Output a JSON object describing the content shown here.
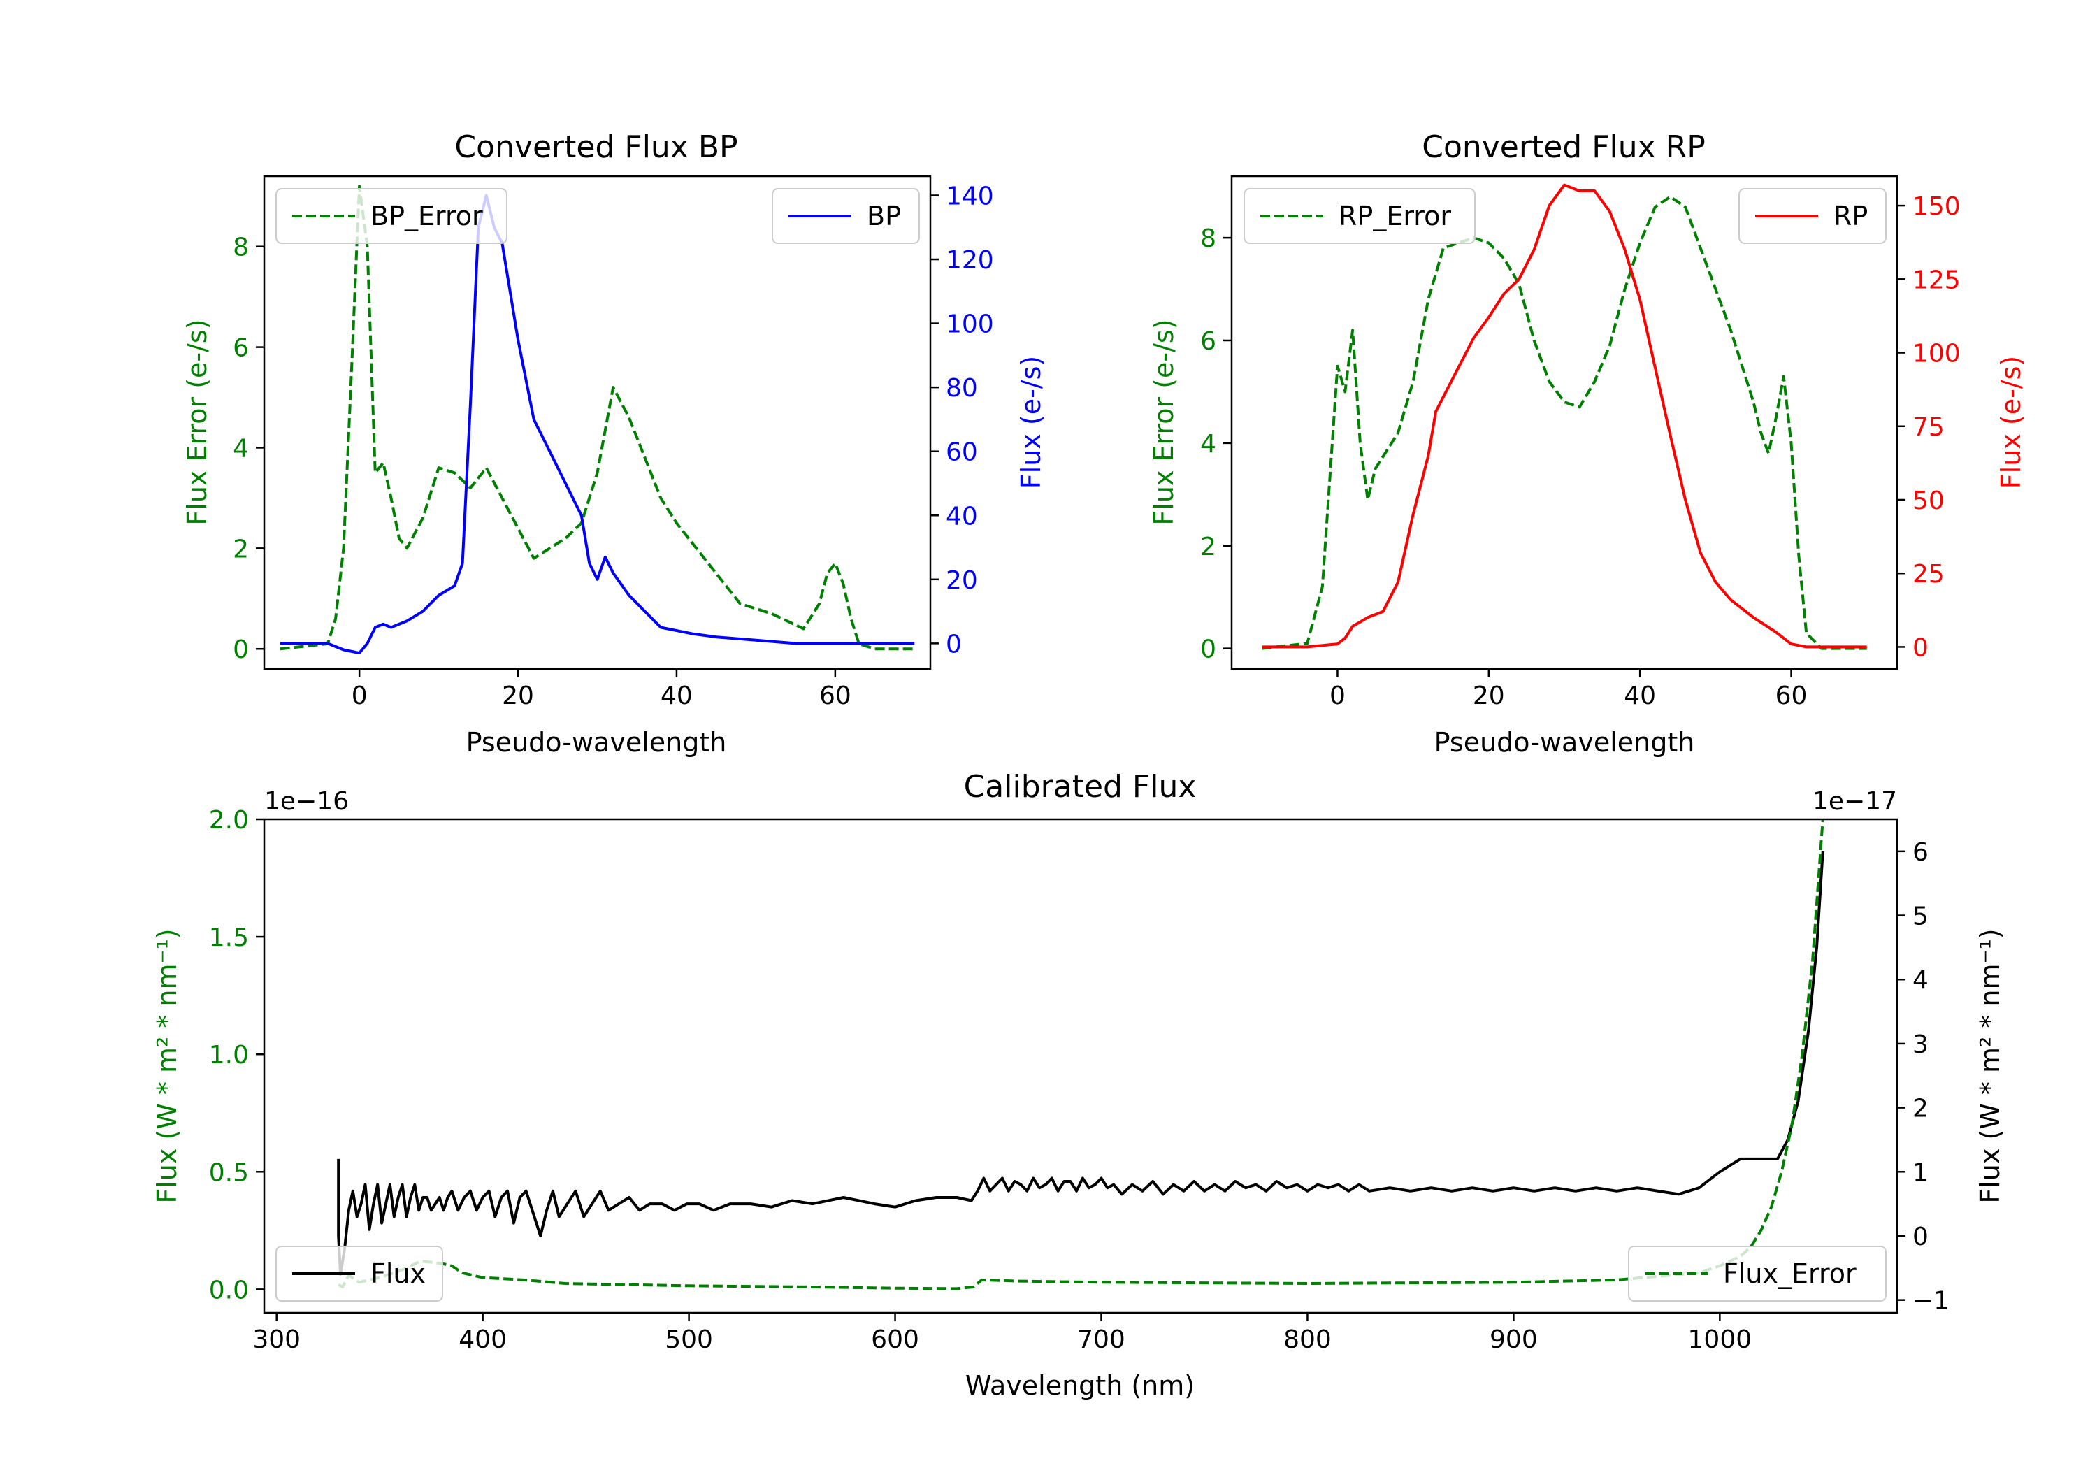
{
  "chart_data": [
    {
      "type": "line",
      "title": "Converted Flux BP",
      "xlabel": "Pseudo-wavelength",
      "xlim": [
        -12,
        72
      ],
      "xticks": [
        0,
        20,
        40,
        60
      ],
      "y_left": {
        "label": "Flux Error (e-/s)",
        "color": "#008000",
        "lim": [
          -0.4,
          9.4
        ],
        "ticks": [
          0,
          2,
          4,
          6,
          8
        ]
      },
      "y_right": {
        "label": "Flux (e-/s)",
        "color": "#0000ff",
        "lim": [
          -8,
          146
        ],
        "ticks": [
          0,
          20,
          40,
          60,
          80,
          100,
          120,
          140
        ]
      },
      "legend_left": {
        "label": "BP_Error",
        "position": "upper left"
      },
      "legend_right": {
        "label": "BP",
        "position": "upper right"
      },
      "series": [
        {
          "name": "BP_Error",
          "axis": "left",
          "color": "#008000",
          "style": "dashed",
          "x": [
            -10,
            -4,
            -3,
            -2,
            -1,
            0,
            1,
            2,
            3,
            4,
            5,
            6,
            8,
            10,
            12,
            14,
            16,
            18,
            20,
            22,
            24,
            26,
            28,
            30,
            32,
            34,
            36,
            38,
            40,
            44,
            48,
            52,
            56,
            58,
            59,
            60,
            61,
            62,
            63,
            65,
            70
          ],
          "y": [
            0,
            0.1,
            0.6,
            2,
            5.5,
            9.2,
            8,
            3.5,
            3.7,
            3,
            2.2,
            2.0,
            2.6,
            3.6,
            3.5,
            3.2,
            3.6,
            3,
            2.4,
            1.8,
            2,
            2.2,
            2.5,
            3.5,
            5.2,
            4.6,
            3.8,
            3.0,
            2.5,
            1.7,
            0.9,
            0.7,
            0.4,
            0.9,
            1.5,
            1.7,
            1.3,
            0.6,
            0.1,
            0,
            0
          ]
        },
        {
          "name": "BP",
          "axis": "right",
          "color": "#0000ff",
          "style": "solid",
          "x": [
            -10,
            -4,
            -2,
            0,
            1,
            2,
            3,
            4,
            6,
            8,
            10,
            12,
            13,
            14,
            15,
            16,
            17,
            18,
            19,
            20,
            22,
            24,
            26,
            28,
            29,
            30,
            31,
            32,
            34,
            36,
            38,
            40,
            42,
            45,
            50,
            55,
            60,
            65,
            70
          ],
          "y": [
            0,
            0,
            -2,
            -3,
            0,
            5,
            6,
            5,
            7,
            10,
            15,
            18,
            25,
            75,
            130,
            140,
            130,
            125,
            110,
            95,
            70,
            60,
            50,
            40,
            25,
            20,
            27,
            22,
            15,
            10,
            5,
            4,
            3,
            2,
            1,
            0,
            0,
            0,
            0
          ]
        }
      ]
    },
    {
      "type": "line",
      "title": "Converted Flux RP",
      "xlabel": "Pseudo-wavelength",
      "xlim": [
        -14,
        74
      ],
      "xticks": [
        0,
        20,
        40,
        60
      ],
      "y_left": {
        "label": "Flux Error (e-/s)",
        "color": "#008000",
        "lim": [
          -0.4,
          9.2
        ],
        "ticks": [
          0,
          2,
          4,
          6,
          8
        ]
      },
      "y_right": {
        "label": "Flux (e-/s)",
        "color": "#ff0000",
        "lim": [
          -7.5,
          160
        ],
        "ticks": [
          0,
          25,
          50,
          75,
          100,
          125,
          150
        ]
      },
      "legend_left": {
        "label": "RP_Error",
        "position": "upper left"
      },
      "legend_right": {
        "label": "RP",
        "position": "upper right"
      },
      "series": [
        {
          "name": "RP_Error",
          "axis": "left",
          "color": "#008000",
          "style": "dashed",
          "x": [
            -10,
            -4,
            -2,
            0,
            1,
            2,
            3,
            4,
            5,
            8,
            10,
            12,
            14,
            16,
            18,
            20,
            22,
            24,
            26,
            28,
            30,
            32,
            34,
            36,
            38,
            40,
            42,
            44,
            46,
            48,
            52,
            55,
            56,
            57,
            58,
            59,
            60,
            61,
            62,
            64,
            70
          ],
          "y": [
            0,
            0.1,
            1.2,
            5.5,
            5.0,
            6.2,
            4.0,
            2.9,
            3.5,
            4.2,
            5.2,
            6.8,
            7.8,
            7.9,
            8.0,
            7.9,
            7.6,
            7.1,
            6.0,
            5.2,
            4.8,
            4.7,
            5.2,
            5.9,
            7,
            7.9,
            8.6,
            8.8,
            8.6,
            7.8,
            6.2,
            4.8,
            4.2,
            3.8,
            4.5,
            5.3,
            4.0,
            1.8,
            0.3,
            0,
            0
          ]
        },
        {
          "name": "RP",
          "axis": "right",
          "color": "#ff0000",
          "style": "solid",
          "x": [
            -10,
            -4,
            0,
            1,
            2,
            4,
            6,
            8,
            10,
            12,
            13,
            14,
            16,
            18,
            20,
            22,
            24,
            26,
            28,
            30,
            32,
            34,
            36,
            38,
            40,
            42,
            44,
            46,
            48,
            50,
            52,
            55,
            58,
            60,
            62,
            70
          ],
          "y": [
            0,
            0,
            1,
            3,
            7,
            10,
            12,
            22,
            45,
            65,
            80,
            85,
            95,
            105,
            112,
            120,
            125,
            135,
            150,
            157,
            155,
            155,
            148,
            135,
            118,
            95,
            72,
            50,
            32,
            22,
            16,
            10,
            5,
            1,
            0,
            0
          ]
        }
      ]
    },
    {
      "type": "line",
      "title": "Calibrated Flux",
      "xlabel": "Wavelength (nm)",
      "xlim": [
        294,
        1086
      ],
      "xticks": [
        300,
        400,
        500,
        600,
        700,
        800,
        900,
        1000
      ],
      "y_left": {
        "label": "Flux (W * m² * nm⁻¹)",
        "color": "#008000",
        "lim": [
          -0.1,
          2.0
        ],
        "ticks": [
          0.0,
          0.5,
          1.0,
          1.5,
          2.0
        ],
        "ticklabels": [
          "0.0",
          "0.5",
          "1.0",
          "1.5",
          "2.0"
        ],
        "offset": "1e−16"
      },
      "y_right": {
        "label": "Flux (W * m² * nm⁻¹)",
        "color": "#000000",
        "lim": [
          -1.2,
          6.5
        ],
        "ticks": [
          -1,
          0,
          1,
          2,
          3,
          4,
          5,
          6
        ],
        "ticklabels": [
          "−1",
          "0",
          "1",
          "2",
          "3",
          "4",
          "5",
          "6"
        ],
        "offset": "1e−17"
      },
      "legend_left": {
        "label": "Flux",
        "position": "lower left"
      },
      "legend_right": {
        "label": "Flux_Error",
        "position": "lower right"
      },
      "series": [
        {
          "name": "Flux",
          "axis": "right",
          "color": "#000000",
          "style": "solid",
          "x": [
            330,
            330,
            331,
            333,
            335,
            337,
            339,
            341,
            343,
            345,
            347,
            349,
            351,
            353,
            355,
            357,
            359,
            361,
            363,
            365,
            367,
            369,
            371,
            373,
            375,
            377,
            379,
            381,
            383,
            385,
            388,
            391,
            394,
            397,
            400,
            403,
            406,
            409,
            412,
            415,
            418,
            421,
            425,
            428,
            431,
            434,
            437,
            441,
            445,
            449,
            453,
            457,
            461,
            466,
            471,
            476,
            481,
            487,
            493,
            499,
            505,
            512,
            520,
            530,
            540,
            550,
            560,
            575,
            590,
            600,
            610,
            620,
            630,
            637,
            640,
            643,
            646,
            649,
            652,
            655,
            658,
            661,
            664,
            667,
            670,
            673,
            676,
            679,
            682,
            685,
            688,
            691,
            694,
            697,
            700,
            703,
            706,
            710,
            715,
            720,
            725,
            730,
            735,
            740,
            745,
            750,
            755,
            760,
            765,
            770,
            775,
            780,
            785,
            790,
            795,
            800,
            805,
            810,
            815,
            820,
            825,
            830,
            840,
            850,
            860,
            870,
            880,
            890,
            900,
            910,
            920,
            930,
            940,
            950,
            960,
            970,
            980,
            990,
            1000,
            1010,
            1020,
            1028,
            1033,
            1038,
            1043,
            1047,
            1050
          ],
          "y": [
            1.2,
            0.0,
            -0.6,
            -0.2,
            0.4,
            0.7,
            0.3,
            0.5,
            0.8,
            0.1,
            0.5,
            0.8,
            0.2,
            0.5,
            0.8,
            0.3,
            0.6,
            0.8,
            0.3,
            0.6,
            0.8,
            0.4,
            0.6,
            0.6,
            0.4,
            0.5,
            0.6,
            0.4,
            0.6,
            0.7,
            0.4,
            0.6,
            0.7,
            0.4,
            0.6,
            0.7,
            0.3,
            0.6,
            0.7,
            0.2,
            0.6,
            0.7,
            0.3,
            0.0,
            0.4,
            0.7,
            0.3,
            0.5,
            0.7,
            0.3,
            0.5,
            0.7,
            0.4,
            0.5,
            0.6,
            0.4,
            0.5,
            0.5,
            0.4,
            0.5,
            0.5,
            0.4,
            0.5,
            0.5,
            0.45,
            0.55,
            0.5,
            0.6,
            0.5,
            0.45,
            0.55,
            0.6,
            0.6,
            0.55,
            0.7,
            0.9,
            0.7,
            0.8,
            0.9,
            0.7,
            0.85,
            0.8,
            0.7,
            0.9,
            0.75,
            0.8,
            0.9,
            0.7,
            0.85,
            0.85,
            0.7,
            0.9,
            0.75,
            0.8,
            0.9,
            0.75,
            0.8,
            0.65,
            0.8,
            0.7,
            0.85,
            0.65,
            0.8,
            0.7,
            0.85,
            0.7,
            0.8,
            0.7,
            0.85,
            0.75,
            0.8,
            0.7,
            0.85,
            0.75,
            0.8,
            0.7,
            0.8,
            0.75,
            0.8,
            0.7,
            0.8,
            0.7,
            0.75,
            0.7,
            0.75,
            0.7,
            0.75,
            0.7,
            0.75,
            0.7,
            0.75,
            0.7,
            0.75,
            0.7,
            0.75,
            0.7,
            0.65,
            0.75,
            1.0,
            1.2,
            1.2,
            1.2,
            1.5,
            2.1,
            3.2,
            4.5,
            6.0
          ]
        },
        {
          "name": "Flux_Error",
          "axis": "left",
          "color": "#008000",
          "style": "dashed",
          "x": [
            330,
            332,
            335,
            340,
            350,
            360,
            370,
            380,
            385,
            390,
            400,
            420,
            440,
            500,
            560,
            600,
            630,
            638,
            642,
            660,
            700,
            800,
            900,
            950,
            990,
            1000,
            1010,
            1015,
            1020,
            1025,
            1030,
            1035,
            1040,
            1045,
            1050
          ],
          "y": [
            0.02,
            0.01,
            0.06,
            0.03,
            0.05,
            0.08,
            0.12,
            0.11,
            0.1,
            0.07,
            0.05,
            0.04,
            0.025,
            0.015,
            0.01,
            0.005,
            0.003,
            0.01,
            0.04,
            0.035,
            0.03,
            0.025,
            0.03,
            0.04,
            0.07,
            0.1,
            0.14,
            0.18,
            0.25,
            0.35,
            0.5,
            0.7,
            1.0,
            1.4,
            2.0
          ]
        }
      ]
    }
  ]
}
